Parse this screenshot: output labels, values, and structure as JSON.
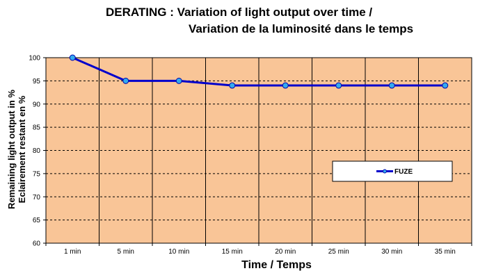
{
  "title_line1": "DERATING : Variation of light output over time /",
  "title_line2": "Variation de la luminosité dans le temps",
  "ylabel_line1": "Remaining light output in %",
  "ylabel_line2": "Eclairement restant en %",
  "xlabel": "Time / Temps",
  "legend_label": "FUZE",
  "chart_data": {
    "type": "line",
    "categories": [
      "1 min",
      "5 min",
      "10 min",
      "15 min",
      "20 min",
      "25 min",
      "30 min",
      "35 min"
    ],
    "series": [
      {
        "name": "FUZE",
        "values": [
          100,
          95,
          95,
          94,
          94,
          94,
          94,
          94
        ],
        "color": "#0000cc",
        "marker_color": "#33aaee"
      }
    ],
    "ylim": [
      60,
      100
    ],
    "yticks": [
      60,
      65,
      70,
      75,
      80,
      85,
      90,
      95,
      100
    ],
    "grid": "horizontal dashed, vertical solid",
    "legend_position": "right",
    "plot_background": "#f9c597"
  }
}
